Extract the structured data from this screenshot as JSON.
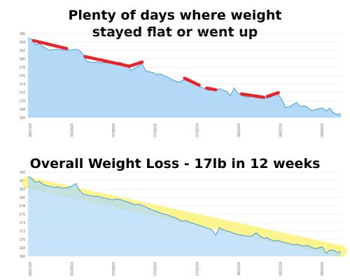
{
  "panels": [
    {
      "title_line1": "Plenty of days where weight",
      "title_line2": "stayed flat or went up"
    },
    {
      "title": "Overall Weight Loss - 17lb in 12 weeks"
    }
  ],
  "colors": {
    "area_fill": "#b3d9f7",
    "line": "#3a8fd8",
    "flat_marker": "#e8232a",
    "trend_band": "#fbf37a"
  },
  "chart_data": [
    {
      "type": "area",
      "title": "Plenty of days where weight stayed flat or went up",
      "xlabel": "",
      "ylabel": "",
      "ylim": [
        166,
        186
      ],
      "yticks": [
        "186",
        "184",
        "182",
        "180",
        "178",
        "176",
        "174",
        "172",
        "170",
        "168",
        "166"
      ],
      "xticks": [
        "06/17/24",
        "06/28/24",
        "07/09/24",
        "07/20/24",
        "07/31/24",
        "08/11/24",
        "08/22/24",
        "09/02/24"
      ],
      "grid": true,
      "x_days": [
        0,
        1,
        2,
        3,
        4,
        5,
        6,
        7,
        8,
        9,
        10,
        11,
        12,
        13,
        14,
        15,
        16,
        17,
        18,
        19,
        20,
        21,
        22,
        23,
        24,
        25,
        26,
        27,
        28,
        29,
        30,
        31,
        32,
        33,
        34,
        35,
        36,
        37,
        38,
        39,
        40,
        41,
        42,
        43,
        44,
        45,
        46,
        47,
        48,
        49,
        50,
        51,
        52,
        53,
        54,
        55,
        56,
        57,
        58,
        59,
        60,
        61,
        62,
        63,
        64,
        65,
        66,
        67,
        68,
        69,
        70,
        71,
        72,
        73,
        74,
        75,
        76,
        77,
        78,
        79,
        80,
        81,
        82,
        83,
        84,
        85
      ],
      "values": [
        185,
        184.6,
        183.4,
        183.6,
        183,
        182.4,
        182,
        182.2,
        182.3,
        182.1,
        182.2,
        182,
        182.1,
        182.3,
        182,
        181,
        179.4,
        179.2,
        179.1,
        179.3,
        179,
        179.1,
        179,
        178.8,
        179,
        179.2,
        178.8,
        178.6,
        177.2,
        177.8,
        178.3,
        178.9,
        177.1,
        176.9,
        176.7,
        176.2,
        176.4,
        176,
        175.6,
        175.1,
        174.7,
        174.4,
        174.8,
        175.3,
        174.6,
        174.3,
        173.6,
        173.2,
        172.9,
        172.5,
        172.7,
        172.3,
        172.9,
        172.5,
        172.2,
        171.2,
        173,
        171.8,
        171.3,
        171,
        170.8,
        171.2,
        170.7,
        170.9,
        170.5,
        170.7,
        170.9,
        171.4,
        171.6,
        170.2,
        168.4,
        168.6,
        169.1,
        169.6,
        168.6,
        168.8,
        168.4,
        167.6,
        167.9,
        168.1,
        168.3,
        167.6,
        168.2,
        167.1,
        166.7,
        167
      ],
      "annotations": {
        "flat_segments_days": [
          [
            1.5,
            10.5
          ],
          [
            15.5,
            27.5
          ],
          [
            27.5,
            31
          ],
          [
            42.5,
            46.5
          ],
          [
            48.5,
            51
          ],
          [
            58,
            64
          ],
          [
            65,
            68
          ]
        ]
      }
    },
    {
      "type": "area",
      "title": "Overall Weight Loss - 17lb in 12 weeks",
      "xlabel": "",
      "ylabel": "",
      "ylim": [
        166,
        186
      ],
      "yticks": [
        "186",
        "184",
        "182",
        "180",
        "178",
        "176",
        "174",
        "172",
        "170",
        "168",
        "166"
      ],
      "xticks": [
        "06/17/24",
        "06/28/24",
        "07/09/24",
        "07/20/24",
        "07/31/24",
        "08/11/24",
        "08/22/24",
        "09/02/24"
      ],
      "grid": true,
      "x_days": [
        0,
        1,
        2,
        3,
        4,
        5,
        6,
        7,
        8,
        9,
        10,
        11,
        12,
        13,
        14,
        15,
        16,
        17,
        18,
        19,
        20,
        21,
        22,
        23,
        24,
        25,
        26,
        27,
        28,
        29,
        30,
        31,
        32,
        33,
        34,
        35,
        36,
        37,
        38,
        39,
        40,
        41,
        42,
        43,
        44,
        45,
        46,
        47,
        48,
        49,
        50,
        51,
        52,
        53,
        54,
        55,
        56,
        57,
        58,
        59,
        60,
        61,
        62,
        63,
        64,
        65,
        66,
        67,
        68,
        69,
        70,
        71,
        72,
        73,
        74,
        75,
        76,
        77,
        78,
        79,
        80,
        81,
        82,
        83,
        84,
        85
      ],
      "values": [
        185,
        184.5,
        183.6,
        183.8,
        183.2,
        182.8,
        182.6,
        182.4,
        182.5,
        182.3,
        182.2,
        182.4,
        182.7,
        183.3,
        181.6,
        180.8,
        180.6,
        180.4,
        180.2,
        180.3,
        180,
        179.8,
        179.6,
        179.4,
        179.6,
        179.5,
        179.2,
        178.9,
        178.6,
        178.2,
        178.4,
        178.1,
        177.7,
        177.3,
        176.9,
        176.6,
        176.3,
        176,
        175.8,
        175.4,
        175.2,
        174.7,
        174.3,
        174.5,
        174,
        173.8,
        173.5,
        173.2,
        172.9,
        172.6,
        172.3,
        171,
        172.8,
        172.3,
        172,
        171.8,
        171.4,
        171.2,
        171,
        170.9,
        170.7,
        170.9,
        171.6,
        170.8,
        170.3,
        170.4,
        169.9,
        169.6,
        169.8,
        169.4,
        169.2,
        169,
        168.7,
        168.9,
        168.6,
        168.4,
        168.6,
        168.1,
        167.8,
        168,
        168.2,
        166.7,
        167.5,
        167.4,
        166.9,
        167.1
      ],
      "trend_band": {
        "center_start": 183.5,
        "center_end": 167.2,
        "half_width": 1.4
      }
    }
  ]
}
